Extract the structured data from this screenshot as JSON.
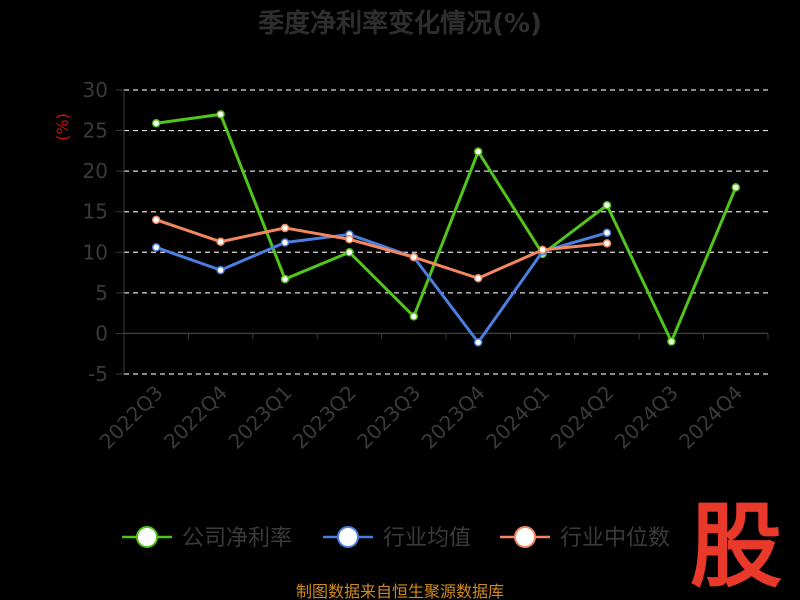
{
  "chart_data": {
    "type": "line",
    "title": "季度净利率变化情况(%)",
    "ylabel": "(%)",
    "xlabel": "",
    "categories": [
      "2022Q3",
      "2022Q4",
      "2023Q1",
      "2023Q2",
      "2023Q3",
      "2023Q4",
      "2024Q1",
      "2024Q2",
      "2024Q3",
      "2024Q4"
    ],
    "y_ticks": [
      "30",
      "25",
      "20",
      "15",
      "10",
      "5",
      "0",
      "-5"
    ],
    "ylim": [
      -5,
      30
    ],
    "grid": true,
    "legend_position": "bottom",
    "series": [
      {
        "name": "公司净利率",
        "color": "#52c41a",
        "values": [
          25.9,
          27.0,
          6.7,
          10.0,
          2.1,
          22.4,
          9.8,
          15.8,
          -1.0,
          18.0
        ]
      },
      {
        "name": "行业均值",
        "color": "#4a7fe0",
        "values": [
          10.6,
          7.8,
          11.2,
          12.2,
          9.4,
          -1.1,
          10.1,
          12.4,
          null,
          null
        ]
      },
      {
        "name": "行业中位数",
        "color": "#f4875f",
        "values": [
          14.0,
          11.3,
          13.0,
          11.6,
          9.4,
          6.8,
          10.3,
          11.1,
          null,
          null
        ]
      }
    ]
  },
  "source": "制图数据来自恒生聚源数据库",
  "logo": {
    "text": "股"
  }
}
